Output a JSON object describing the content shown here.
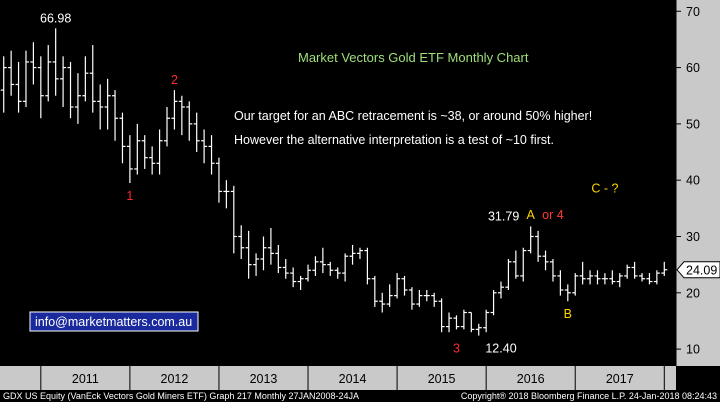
{
  "chart_data": {
    "type": "ohlc",
    "title": "Market Vectors Gold ETF Monthly Chart",
    "ylim": [
      7,
      72
    ],
    "yticks": [
      10,
      20,
      30,
      40,
      50,
      60,
      70
    ],
    "x_categories": [
      "2011",
      "2012",
      "2013",
      "2014",
      "2015",
      "2016",
      "2017"
    ],
    "x_range": [
      "2010-08",
      "2018-02"
    ],
    "grid": false,
    "last_price": "24.09",
    "last_price_value": 24.09,
    "series": [
      {
        "x": "2010-08",
        "o": 56,
        "h": 62,
        "l": 52,
        "c": 60
      },
      {
        "x": "2010-09",
        "o": 60,
        "h": 63,
        "l": 55,
        "c": 57
      },
      {
        "x": "2010-10",
        "o": 57,
        "h": 61,
        "l": 52,
        "c": 54
      },
      {
        "x": "2010-11",
        "o": 54,
        "h": 63,
        "l": 53,
        "c": 61
      },
      {
        "x": "2010-12",
        "o": 61,
        "h": 64.5,
        "l": 57,
        "c": 60
      },
      {
        "x": "2011-01",
        "o": 60,
        "h": 62,
        "l": 51,
        "c": 55
      },
      {
        "x": "2011-02",
        "o": 55,
        "h": 64,
        "l": 54,
        "c": 61
      },
      {
        "x": "2011-03",
        "o": 61,
        "h": 66.98,
        "l": 55,
        "c": 58
      },
      {
        "x": "2011-04",
        "o": 58,
        "h": 62,
        "l": 53,
        "c": 60
      },
      {
        "x": "2011-05",
        "o": 60,
        "h": 61,
        "l": 51,
        "c": 53
      },
      {
        "x": "2011-06",
        "o": 53,
        "h": 59,
        "l": 50,
        "c": 55
      },
      {
        "x": "2011-07",
        "o": 55,
        "h": 62,
        "l": 54,
        "c": 59
      },
      {
        "x": "2011-08",
        "o": 59,
        "h": 64,
        "l": 52,
        "c": 54
      },
      {
        "x": "2011-09",
        "o": 54,
        "h": 57,
        "l": 49,
        "c": 53
      },
      {
        "x": "2011-10",
        "o": 53,
        "h": 58,
        "l": 49,
        "c": 55
      },
      {
        "x": "2011-11",
        "o": 55,
        "h": 56,
        "l": 47,
        "c": 51
      },
      {
        "x": "2011-12",
        "o": 51,
        "h": 52,
        "l": 43,
        "c": 46
      },
      {
        "x": "2012-01",
        "o": 46,
        "h": 48,
        "l": 39.5,
        "c": 42
      },
      {
        "x": "2012-02",
        "o": 42,
        "h": 50,
        "l": 41,
        "c": 47
      },
      {
        "x": "2012-03",
        "o": 47,
        "h": 48,
        "l": 42,
        "c": 44
      },
      {
        "x": "2012-04",
        "o": 44,
        "h": 46,
        "l": 41,
        "c": 43
      },
      {
        "x": "2012-05",
        "o": 43,
        "h": 49,
        "l": 41,
        "c": 47
      },
      {
        "x": "2012-06",
        "o": 47,
        "h": 53,
        "l": 46,
        "c": 51
      },
      {
        "x": "2012-07",
        "o": 51,
        "h": 56,
        "l": 49,
        "c": 54
      },
      {
        "x": "2012-08",
        "o": 54,
        "h": 55,
        "l": 48,
        "c": 53
      },
      {
        "x": "2012-09",
        "o": 53,
        "h": 54,
        "l": 47,
        "c": 50
      },
      {
        "x": "2012-10",
        "o": 50,
        "h": 52,
        "l": 45,
        "c": 47
      },
      {
        "x": "2012-11",
        "o": 47,
        "h": 49,
        "l": 43,
        "c": 46
      },
      {
        "x": "2012-12",
        "o": 46,
        "h": 48,
        "l": 41,
        "c": 43
      },
      {
        "x": "2013-01",
        "o": 43,
        "h": 44,
        "l": 36,
        "c": 38
      },
      {
        "x": "2013-02",
        "o": 38,
        "h": 40,
        "l": 35,
        "c": 38
      },
      {
        "x": "2013-03",
        "o": 38,
        "h": 39,
        "l": 27,
        "c": 30
      },
      {
        "x": "2013-04",
        "o": 30,
        "h": 32,
        "l": 26,
        "c": 28
      },
      {
        "x": "2013-05",
        "o": 28,
        "h": 31,
        "l": 22.5,
        "c": 25
      },
      {
        "x": "2013-06",
        "o": 25,
        "h": 27,
        "l": 23,
        "c": 26
      },
      {
        "x": "2013-07",
        "o": 26,
        "h": 30,
        "l": 24,
        "c": 28
      },
      {
        "x": "2013-08",
        "o": 28,
        "h": 31.5,
        "l": 25,
        "c": 27
      },
      {
        "x": "2013-09",
        "o": 27,
        "h": 28.5,
        "l": 23.5,
        "c": 24.5
      },
      {
        "x": "2013-10",
        "o": 24.5,
        "h": 26,
        "l": 22.5,
        "c": 23.5
      },
      {
        "x": "2013-11",
        "o": 23.5,
        "h": 24.5,
        "l": 21,
        "c": 22
      },
      {
        "x": "2013-12",
        "o": 22,
        "h": 23,
        "l": 20.5,
        "c": 22.5
      },
      {
        "x": "2014-01",
        "o": 22.5,
        "h": 25,
        "l": 22,
        "c": 24
      },
      {
        "x": "2014-02",
        "o": 24,
        "h": 26.5,
        "l": 23,
        "c": 25.5
      },
      {
        "x": "2014-03",
        "o": 25.5,
        "h": 28,
        "l": 23.5,
        "c": 25
      },
      {
        "x": "2014-04",
        "o": 25,
        "h": 25.5,
        "l": 23,
        "c": 24
      },
      {
        "x": "2014-05",
        "o": 24,
        "h": 24.5,
        "l": 22.5,
        "c": 23.5
      },
      {
        "x": "2014-06",
        "o": 23.5,
        "h": 27,
        "l": 22,
        "c": 26.5
      },
      {
        "x": "2014-07",
        "o": 26.5,
        "h": 28.5,
        "l": 25,
        "c": 27
      },
      {
        "x": "2014-08",
        "o": 27,
        "h": 28,
        "l": 26,
        "c": 27.5
      },
      {
        "x": "2014-09",
        "o": 27.5,
        "h": 28,
        "l": 21.5,
        "c": 22.5
      },
      {
        "x": "2014-10",
        "o": 22.5,
        "h": 23,
        "l": 17.5,
        "c": 18.5
      },
      {
        "x": "2014-11",
        "o": 18.5,
        "h": 20,
        "l": 16.5,
        "c": 18
      },
      {
        "x": "2014-12",
        "o": 18,
        "h": 21.5,
        "l": 17.5,
        "c": 19.5
      },
      {
        "x": "2015-01",
        "o": 19.5,
        "h": 23.5,
        "l": 19,
        "c": 22.5
      },
      {
        "x": "2015-02",
        "o": 22.5,
        "h": 23,
        "l": 19.5,
        "c": 20.5
      },
      {
        "x": "2015-03",
        "o": 20.5,
        "h": 21,
        "l": 17,
        "c": 18
      },
      {
        "x": "2015-04",
        "o": 18,
        "h": 20.5,
        "l": 17.5,
        "c": 19.5
      },
      {
        "x": "2015-05",
        "o": 19.5,
        "h": 20.5,
        "l": 18.5,
        "c": 19.5
      },
      {
        "x": "2015-06",
        "o": 19.5,
        "h": 20,
        "l": 17.5,
        "c": 18.5
      },
      {
        "x": "2015-07",
        "o": 18.5,
        "h": 19,
        "l": 13,
        "c": 14
      },
      {
        "x": "2015-08",
        "o": 14,
        "h": 16.5,
        "l": 13,
        "c": 15.5
      },
      {
        "x": "2015-09",
        "o": 15.5,
        "h": 16,
        "l": 13.5,
        "c": 14
      },
      {
        "x": "2015-10",
        "o": 14,
        "h": 17,
        "l": 13.5,
        "c": 16.5
      },
      {
        "x": "2015-11",
        "o": 16.5,
        "h": 16.5,
        "l": 13,
        "c": 13.5
      },
      {
        "x": "2015-12",
        "o": 13.5,
        "h": 14.5,
        "l": 12.4,
        "c": 13.8
      },
      {
        "x": "2016-01",
        "o": 13.8,
        "h": 17,
        "l": 13,
        "c": 16.5
      },
      {
        "x": "2016-02",
        "o": 16.5,
        "h": 20.5,
        "l": 16,
        "c": 20
      },
      {
        "x": "2016-03",
        "o": 20,
        "h": 22,
        "l": 19,
        "c": 21
      },
      {
        "x": "2016-04",
        "o": 21,
        "h": 26,
        "l": 20.5,
        "c": 25.5
      },
      {
        "x": "2016-05",
        "o": 25.5,
        "h": 27.5,
        "l": 22.5,
        "c": 23
      },
      {
        "x": "2016-06",
        "o": 23,
        "h": 28,
        "l": 22,
        "c": 27.5
      },
      {
        "x": "2016-07",
        "o": 27.5,
        "h": 31.79,
        "l": 27,
        "c": 30
      },
      {
        "x": "2016-08",
        "o": 30,
        "h": 31,
        "l": 25.5,
        "c": 26.5
      },
      {
        "x": "2016-09",
        "o": 26.5,
        "h": 27.5,
        "l": 24,
        "c": 25.5
      },
      {
        "x": "2016-10",
        "o": 25.5,
        "h": 26,
        "l": 22,
        "c": 23
      },
      {
        "x": "2016-11",
        "o": 23,
        "h": 24,
        "l": 19.5,
        "c": 20.5
      },
      {
        "x": "2016-12",
        "o": 20.5,
        "h": 21.5,
        "l": 18.5,
        "c": 20
      },
      {
        "x": "2017-01",
        "o": 20,
        "h": 23.5,
        "l": 19.5,
        "c": 23
      },
      {
        "x": "2017-02",
        "o": 23,
        "h": 25.5,
        "l": 21.5,
        "c": 22.5
      },
      {
        "x": "2017-03",
        "o": 22.5,
        "h": 24,
        "l": 21.5,
        "c": 23
      },
      {
        "x": "2017-04",
        "o": 23,
        "h": 24,
        "l": 21.5,
        "c": 22.5
      },
      {
        "x": "2017-05",
        "o": 22.5,
        "h": 23.5,
        "l": 21.5,
        "c": 22.5
      },
      {
        "x": "2017-06",
        "o": 22.5,
        "h": 24,
        "l": 21.5,
        "c": 22
      },
      {
        "x": "2017-07",
        "o": 22,
        "h": 23.5,
        "l": 21,
        "c": 23
      },
      {
        "x": "2017-08",
        "o": 23,
        "h": 25,
        "l": 22.5,
        "c": 24.5
      },
      {
        "x": "2017-09",
        "o": 24.5,
        "h": 25.5,
        "l": 22.5,
        "c": 23
      },
      {
        "x": "2017-10",
        "o": 23,
        "h": 23.5,
        "l": 22,
        "c": 22.5
      },
      {
        "x": "2017-11",
        "o": 22.5,
        "h": 23.5,
        "l": 21.5,
        "c": 22
      },
      {
        "x": "2017-12",
        "o": 22,
        "h": 24,
        "l": 21.5,
        "c": 23.5
      },
      {
        "x": "2018-01",
        "o": 23.5,
        "h": 25.5,
        "l": 23,
        "c": 24.09
      }
    ],
    "annotations": [
      {
        "text": "66.98",
        "x": "2011-03",
        "y": 66.98,
        "color": "#ffffff",
        "pos": "above"
      },
      {
        "text": "2",
        "x": "2012-07",
        "y": 56,
        "color": "#ff2a2a",
        "pos": "above"
      },
      {
        "text": "1",
        "x": "2012-01",
        "y": 39.5,
        "color": "#ff2a2a",
        "pos": "below"
      },
      {
        "text": "31.79",
        "x": "2016-06",
        "y": 31.79,
        "color": "#ffffff",
        "pos": "above-left"
      },
      {
        "text": "A",
        "x": "2016-07",
        "y": 32,
        "color": "#ffd400",
        "pos": "above"
      },
      {
        "text": "or 4",
        "x": "2016-10",
        "y": 32,
        "color": "#ff3b3b",
        "pos": "above"
      },
      {
        "text": "B",
        "x": "2016-12",
        "y": 18.5,
        "color": "#ffd400",
        "pos": "below"
      },
      {
        "text": "3",
        "x": "2015-09",
        "y": 12.4,
        "color": "#ff2a2a",
        "pos": "below"
      },
      {
        "text": "12.40",
        "x": "2016-03",
        "y": 12.4,
        "color": "#ffffff",
        "pos": "below"
      },
      {
        "text": "C - ?",
        "x": "2017-05",
        "y": 38.5,
        "color": "#ffd400",
        "pos": "center"
      }
    ],
    "notes": [
      "Our target for an ABC retracement is ~38, or around 50% higher!",
      "However the alternative interpretation is a test of ~10 first."
    ],
    "watermark": "info@marketmatters.com.au"
  },
  "footer": {
    "left": "GDX US Equity (VanEck Vectors Gold Miners ETF) Graph 217  Monthly 27JAN2008-24JA",
    "right": "Copyright® 2018 Bloomberg Finance L.P.      24-Jan-2018 08:24:43"
  },
  "colors": {
    "background": "#000000",
    "bars": "#ffffff",
    "title": "#9fe07a",
    "notes": "#ffffff",
    "axis_panel": "#c9c9c9",
    "price_tag_bg": "#ffffff",
    "watermark_border": "#ffffff"
  }
}
